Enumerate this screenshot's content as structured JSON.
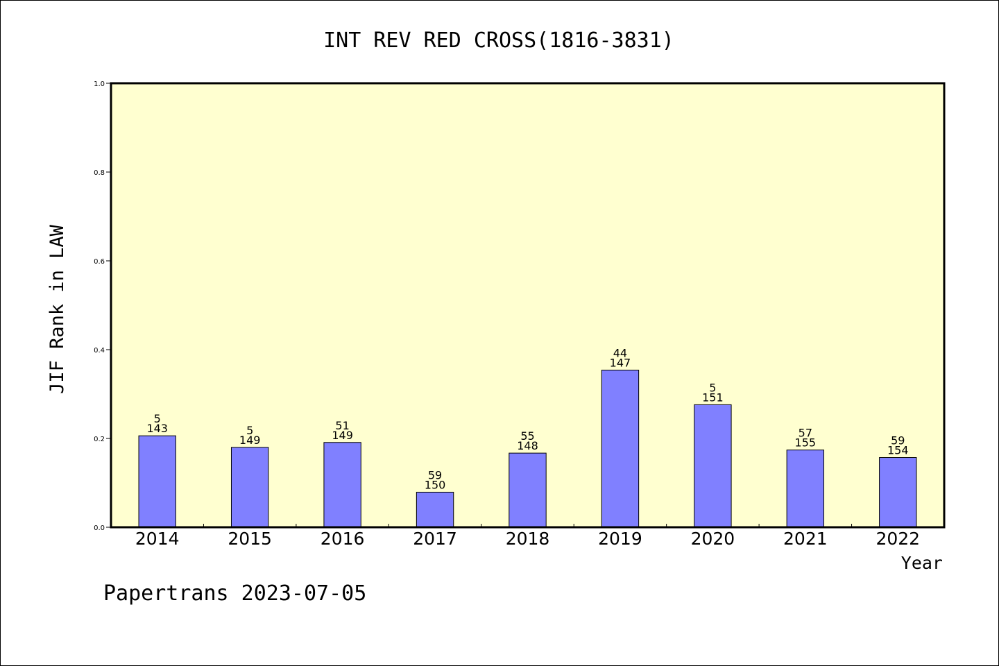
{
  "chart_data": {
    "type": "bar",
    "title": "INT REV RED CROSS(1816-3831)",
    "xlabel": "Year",
    "ylabel": "JIF Rank in LAW",
    "ylim": [
      0,
      1.0
    ],
    "yticks": [
      "0.0",
      "0.2",
      "0.4",
      "0.6",
      "0.8",
      "1.0"
    ],
    "grid": false,
    "categories": [
      "2014",
      "2015",
      "2016",
      "2017",
      "2018",
      "2019",
      "2020",
      "2021",
      "2022"
    ],
    "values": [
      0.206,
      0.18,
      0.191,
      0.079,
      0.167,
      0.354,
      0.276,
      0.174,
      0.157
    ],
    "ranks": [
      "5",
      "5",
      "51",
      "59",
      "55",
      "44",
      "5",
      "57",
      "59"
    ],
    "totals": [
      "143",
      "149",
      "149",
      "150",
      "148",
      "147",
      "151",
      "155",
      "154"
    ]
  },
  "footer": {
    "text": "Papertrans 2023-07-05"
  },
  "colors": {
    "plot_bg": "#ffffd0",
    "bar": "#8080ff",
    "frame": "#000000"
  }
}
